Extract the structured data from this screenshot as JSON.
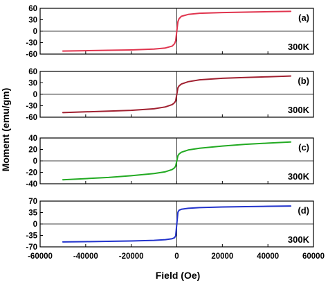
{
  "chart_data": [
    {
      "type": "line",
      "panel_label": "(a)",
      "temperature_label": "300K",
      "color": "#e0344e",
      "ylim": [
        -60,
        60
      ],
      "yticks": [
        "60",
        "30",
        "0",
        "-30",
        "-60"
      ],
      "ytick_values": [
        60,
        30,
        0,
        -30,
        -60
      ],
      "series": [
        {
          "x": [
            -50000,
            -40000,
            -30000,
            -20000,
            -10000,
            -5000,
            -2000,
            -1000,
            -500,
            0,
            500,
            1000,
            2000,
            5000,
            10000,
            20000,
            30000,
            40000,
            50000
          ],
          "y": [
            -52,
            -51,
            -50,
            -49,
            -47,
            -44,
            -39,
            -33,
            -25,
            0,
            25,
            33,
            39,
            44,
            47,
            49,
            50,
            51,
            52
          ]
        }
      ]
    },
    {
      "type": "line",
      "panel_label": "(b)",
      "temperature_label": "300K",
      "color": "#a02030",
      "ylim": [
        -60,
        60
      ],
      "yticks": [
        "60",
        "30",
        "0",
        "-30",
        "-60"
      ],
      "ytick_values": [
        60,
        30,
        0,
        -30,
        -60
      ],
      "series": [
        {
          "x": [
            -50000,
            -40000,
            -30000,
            -20000,
            -10000,
            -5000,
            -2000,
            -1000,
            -500,
            0,
            500,
            1000,
            2000,
            5000,
            10000,
            20000,
            30000,
            40000,
            50000
          ],
          "y": [
            -48,
            -46,
            -44,
            -42,
            -38,
            -33,
            -27,
            -22,
            -17,
            0,
            17,
            22,
            27,
            33,
            38,
            42,
            44,
            46,
            48
          ]
        }
      ]
    },
    {
      "type": "line",
      "panel_label": "(c)",
      "temperature_label": "300K",
      "color": "#22aa22",
      "ylim": [
        -40,
        40
      ],
      "yticks": [
        "40",
        "20",
        "0",
        "-20",
        "-40"
      ],
      "ytick_values": [
        40,
        20,
        0,
        -20,
        -40
      ],
      "series": [
        {
          "x": [
            -50000,
            -40000,
            -30000,
            -20000,
            -10000,
            -5000,
            -2000,
            -1000,
            -500,
            0,
            500,
            1000,
            2000,
            5000,
            10000,
            20000,
            30000,
            40000,
            50000
          ],
          "y": [
            -33,
            -31,
            -29,
            -26,
            -22,
            -19,
            -15,
            -12,
            -9,
            0,
            9,
            12,
            15,
            19,
            22,
            26,
            29,
            31,
            33
          ]
        }
      ]
    },
    {
      "type": "line",
      "panel_label": "(d)",
      "temperature_label": "300K",
      "color": "#2233cc",
      "ylim": [
        -70,
        70
      ],
      "yticks": [
        "70",
        "35",
        "0",
        "-35",
        "-70"
      ],
      "ytick_values": [
        70,
        35,
        0,
        -35,
        -70
      ],
      "series": [
        {
          "x": [
            -50000,
            -40000,
            -30000,
            -20000,
            -10000,
            -5000,
            -2000,
            -1000,
            -500,
            0,
            500,
            1000,
            2000,
            5000,
            10000,
            20000,
            30000,
            40000,
            50000
          ],
          "y": [
            -55,
            -54,
            -53,
            -52,
            -50,
            -48,
            -45,
            -42,
            -36,
            0,
            36,
            42,
            45,
            48,
            50,
            52,
            53,
            54,
            55
          ]
        }
      ]
    }
  ],
  "shared": {
    "xlabel": "Field (Oe)",
    "ylabel": "Moment (emu/gm)",
    "xlim": [
      -60000,
      60000
    ],
    "xticks": [
      "-60000",
      "-40000",
      "-20000",
      "0",
      "20000",
      "40000",
      "60000"
    ],
    "xtick_values": [
      -60000,
      -40000,
      -20000,
      0,
      20000,
      40000,
      60000
    ]
  }
}
